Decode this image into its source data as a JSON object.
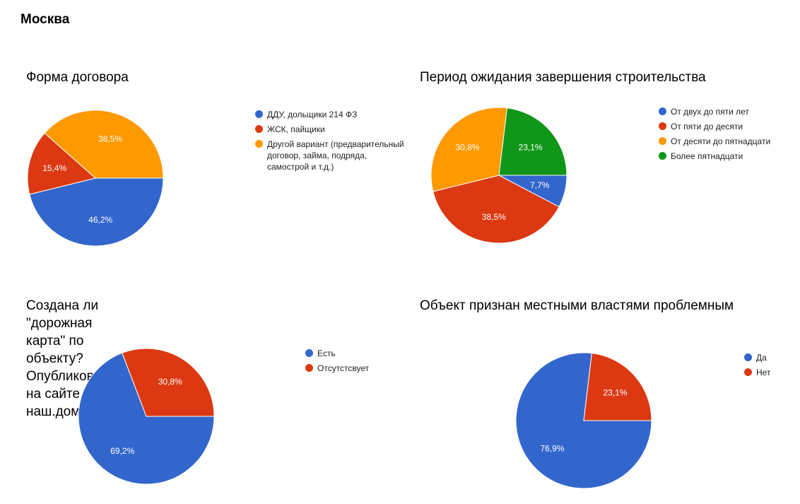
{
  "page": {
    "title": "Москва"
  },
  "colors": {
    "blue": "#3366cc",
    "red": "#dc3912",
    "orange": "#ff9900",
    "green": "#109618"
  },
  "chart_data": [
    {
      "type": "pie",
      "title": "Форма договора",
      "start_angle_deg": 90,
      "direction": "clockwise",
      "legend_position": "right",
      "slices": [
        {
          "label": "ДДУ, дольщики 214 ФЗ",
          "value": 46.2,
          "display": "46,2%",
          "color": "#3366cc"
        },
        {
          "label": "ЖСК, пайщики",
          "value": 15.4,
          "display": "15,4%",
          "color": "#dc3912"
        },
        {
          "label": "Другой вариант (предварительный\nдоговор, займа, подряда,\nсамострой и т.д.)",
          "value": 38.5,
          "display": "38,5%",
          "color": "#ff9900"
        }
      ]
    },
    {
      "type": "pie",
      "title": "Период ожидания завершения строительства",
      "start_angle_deg": 90,
      "direction": "clockwise",
      "legend_position": "right",
      "slices": [
        {
          "label": "От двух до пяти лет",
          "value": 7.7,
          "display": "7,7%",
          "color": "#3366cc"
        },
        {
          "label": "От пяти до десяти",
          "value": 38.5,
          "display": "38,5%",
          "color": "#dc3912"
        },
        {
          "label": "От десяти до пятнадцати",
          "value": 30.8,
          "display": "30,8%",
          "color": "#ff9900"
        },
        {
          "label": "Более пятнадцати",
          "value": 23.1,
          "display": "23,1%",
          "color": "#109618"
        }
      ]
    },
    {
      "type": "pie",
      "title": "Создана ли \"дорожная карта\" по объекту?\nОпубликована на сайте наш.дом.рф",
      "start_angle_deg": 90,
      "direction": "clockwise",
      "legend_position": "right",
      "slices": [
        {
          "label": "Есть",
          "value": 69.2,
          "display": "69,2%",
          "color": "#3366cc"
        },
        {
          "label": "Отсутстсвует",
          "value": 30.8,
          "display": "30,8%",
          "color": "#dc3912"
        }
      ]
    },
    {
      "type": "pie",
      "title": "Объект признан местными властями проблемным",
      "start_angle_deg": 90,
      "direction": "clockwise",
      "legend_position": "right",
      "slices": [
        {
          "label": "Да",
          "value": 76.9,
          "display": "76,9%",
          "color": "#3366cc"
        },
        {
          "label": "Нет",
          "value": 23.1,
          "display": "23,1%",
          "color": "#dc3912"
        }
      ]
    }
  ]
}
